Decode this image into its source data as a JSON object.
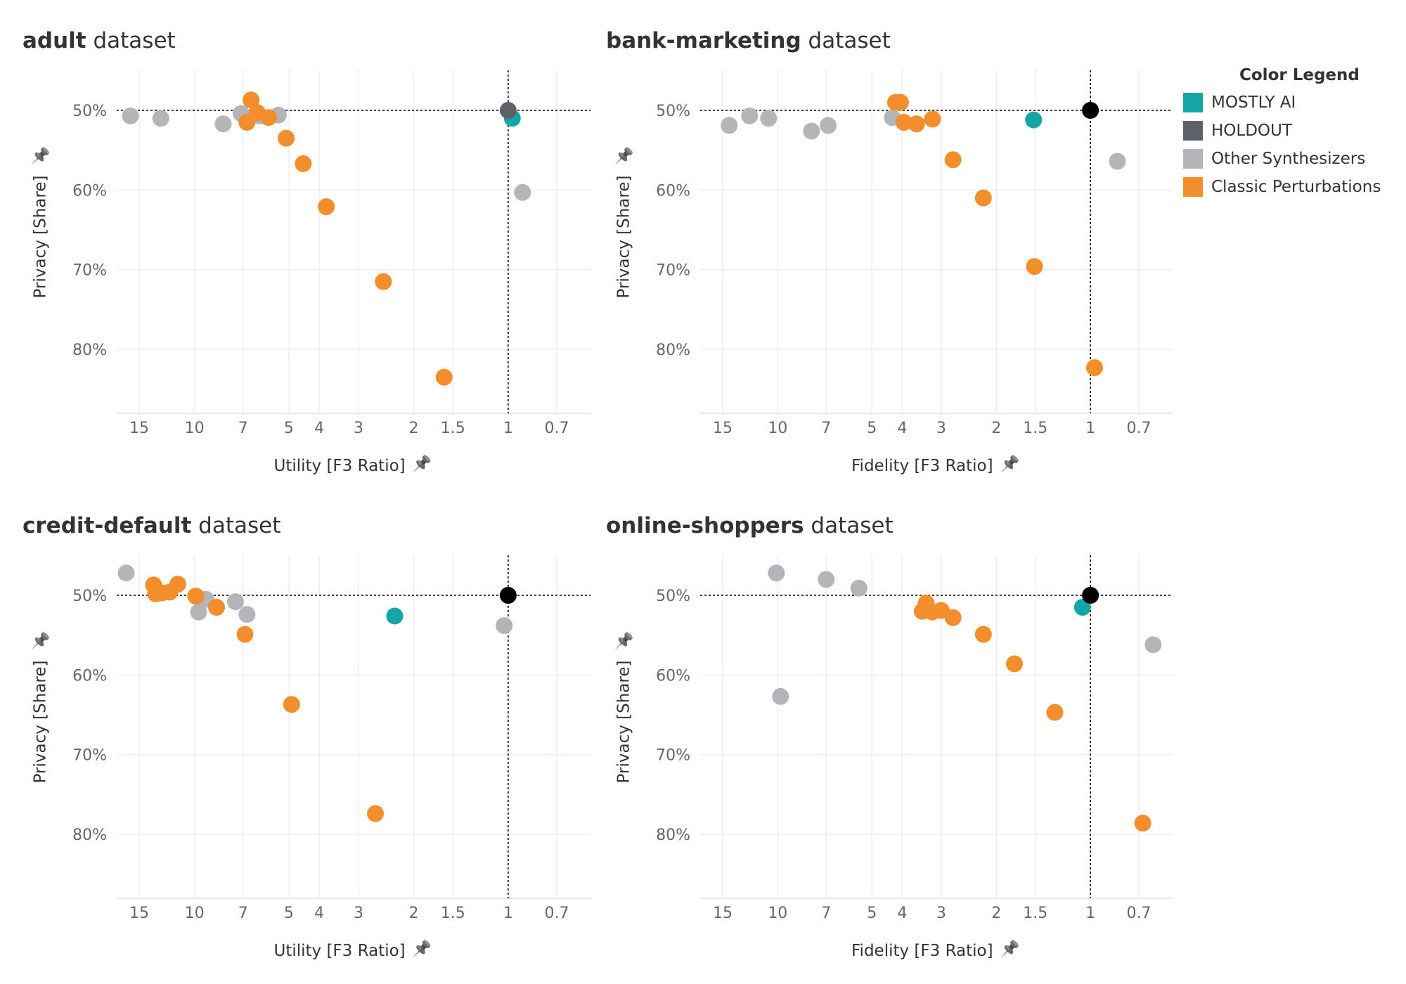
{
  "legend": {
    "title": "Color Legend",
    "items": [
      {
        "label": "MOSTLY AI",
        "color": "#14a6a6"
      },
      {
        "label": "HOLDOUT",
        "color": "#5e6168"
      },
      {
        "label": "Other Synthesizers",
        "color": "#b3b5b8"
      },
      {
        "label": "Classic Perturbations",
        "color": "#f28e2b"
      }
    ]
  },
  "chart_data": [
    {
      "type": "scatter",
      "title_bold": "adult",
      "title_rest": " dataset",
      "xlabel": "Utility [F3 Ratio]",
      "ylabel": "Privacy [Share]",
      "x_scale": "log-reversed",
      "xticks": [
        "15",
        "10",
        "7",
        "5",
        "4",
        "3",
        "2",
        "1.5",
        "1",
        "0.7"
      ],
      "yticks": [
        "50%",
        "60%",
        "70%",
        "80%"
      ],
      "ylim": [
        43,
        88
      ],
      "reference": {
        "x": 1,
        "y": 50
      },
      "series": [
        {
          "name": "HOLDOUT",
          "points": [
            [
              1.0,
              50.0
            ]
          ]
        },
        {
          "name": "MOSTLY AI",
          "points": [
            [
              0.97,
              51.0
            ]
          ]
        },
        {
          "name": "Other Synthesizers",
          "points": [
            [
              16.0,
              50.7
            ],
            [
              12.8,
              51.0
            ],
            [
              8.1,
              51.7
            ],
            [
              7.1,
              50.4
            ],
            [
              6.2,
              50.7
            ],
            [
              5.4,
              50.6
            ],
            [
              0.9,
              60.3
            ]
          ]
        },
        {
          "name": "Classic Perturbations",
          "points": [
            [
              6.6,
              48.7
            ],
            [
              6.3,
              50.3
            ],
            [
              5.8,
              50.9
            ],
            [
              6.8,
              51.5
            ],
            [
              5.1,
              53.5
            ],
            [
              4.5,
              56.7
            ],
            [
              3.8,
              62.1
            ],
            [
              2.5,
              71.5
            ],
            [
              1.6,
              83.5
            ]
          ]
        }
      ]
    },
    {
      "type": "scatter",
      "title_bold": "bank-marketing",
      "title_rest": " dataset",
      "xlabel": "Fidelity [F3 Ratio]",
      "ylabel": "Privacy [Share]",
      "x_scale": "log-reversed",
      "xticks": [
        "15",
        "10",
        "7",
        "5",
        "4",
        "3",
        "2",
        "1.5",
        "1",
        "0.7"
      ],
      "yticks": [
        "50%",
        "60%",
        "70%",
        "80%"
      ],
      "ylim": [
        43,
        88
      ],
      "reference": {
        "x": 1,
        "y": 50
      },
      "series": [
        {
          "name": "HOLDOUT",
          "points": [
            [
              1.0,
              50.0
            ]
          ]
        },
        {
          "name": "MOSTLY AI",
          "points": [
            [
              1.52,
              51.2
            ]
          ]
        },
        {
          "name": "Other Synthesizers",
          "points": [
            [
              14.3,
              51.9
            ],
            [
              12.3,
              50.7
            ],
            [
              10.7,
              51.0
            ],
            [
              7.8,
              52.6
            ],
            [
              6.9,
              51.9
            ],
            [
              4.3,
              50.9
            ],
            [
              0.82,
              56.4
            ]
          ]
        },
        {
          "name": "Classic Perturbations",
          "points": [
            [
              4.2,
              49.0
            ],
            [
              4.05,
              49.0
            ],
            [
              3.95,
              51.5
            ],
            [
              3.6,
              51.7
            ],
            [
              3.2,
              51.1
            ],
            [
              2.75,
              56.2
            ],
            [
              2.2,
              61.0
            ],
            [
              1.51,
              69.6
            ],
            [
              0.97,
              82.3
            ]
          ]
        }
      ]
    },
    {
      "type": "scatter",
      "title_bold": "credit-default",
      "title_rest": " dataset",
      "xlabel": "Utility [F3 Ratio]",
      "ylabel": "Privacy [Share]",
      "x_scale": "log-reversed",
      "xticks": [
        "15",
        "10",
        "7",
        "5",
        "4",
        "3",
        "2",
        "1.5",
        "1",
        "0.7"
      ],
      "yticks": [
        "50%",
        "60%",
        "70%",
        "80%"
      ],
      "ylim": [
        43,
        88
      ],
      "reference": {
        "x": 1,
        "y": 50
      },
      "series": [
        {
          "name": "HOLDOUT",
          "points": [
            [
              1.0,
              50.0
            ]
          ]
        },
        {
          "name": "MOSTLY AI",
          "points": [
            [
              2.3,
              52.6
            ]
          ]
        },
        {
          "name": "Other Synthesizers",
          "points": [
            [
              16.5,
              47.2
            ],
            [
              9.2,
              50.5
            ],
            [
              9.7,
              52.1
            ],
            [
              7.4,
              50.8
            ],
            [
              6.8,
              52.4
            ],
            [
              1.03,
              53.8
            ]
          ]
        },
        {
          "name": "Classic Perturbations",
          "points": [
            [
              13.5,
              48.7
            ],
            [
              12.7,
              49.7
            ],
            [
              13.3,
              49.8
            ],
            [
              12.0,
              49.6
            ],
            [
              11.3,
              48.6
            ],
            [
              9.9,
              50.1
            ],
            [
              8.5,
              51.5
            ],
            [
              6.9,
              54.9
            ],
            [
              4.9,
              63.7
            ],
            [
              2.65,
              77.4
            ]
          ]
        }
      ]
    },
    {
      "type": "scatter",
      "title_bold": "online-shoppers",
      "title_rest": " dataset",
      "xlabel": "Fidelity [F3 Ratio]",
      "ylabel": "Privacy [Share]",
      "x_scale": "log-reversed",
      "xticks": [
        "15",
        "10",
        "7",
        "5",
        "4",
        "3",
        "2",
        "1.5",
        "1",
        "0.7"
      ],
      "yticks": [
        "50%",
        "60%",
        "70%",
        "80%"
      ],
      "ylim": [
        43,
        88
      ],
      "reference": {
        "x": 1,
        "y": 50
      },
      "series": [
        {
          "name": "HOLDOUT",
          "points": [
            [
              1.0,
              50.0
            ]
          ]
        },
        {
          "name": "MOSTLY AI",
          "points": [
            [
              1.06,
              51.5
            ]
          ]
        },
        {
          "name": "Other Synthesizers",
          "points": [
            [
              10.1,
              47.2
            ],
            [
              7.0,
              48.0
            ],
            [
              5.5,
              49.1
            ],
            [
              9.8,
              62.7
            ],
            [
              0.63,
              56.2
            ]
          ]
        },
        {
          "name": "Classic Perturbations",
          "points": [
            [
              3.35,
              51.0
            ],
            [
              3.45,
              52.0
            ],
            [
              3.2,
              52.1
            ],
            [
              3.0,
              51.9
            ],
            [
              2.75,
              52.8
            ],
            [
              2.2,
              54.9
            ],
            [
              1.75,
              58.6
            ],
            [
              1.3,
              64.7
            ],
            [
              0.68,
              78.6
            ]
          ]
        }
      ]
    }
  ]
}
